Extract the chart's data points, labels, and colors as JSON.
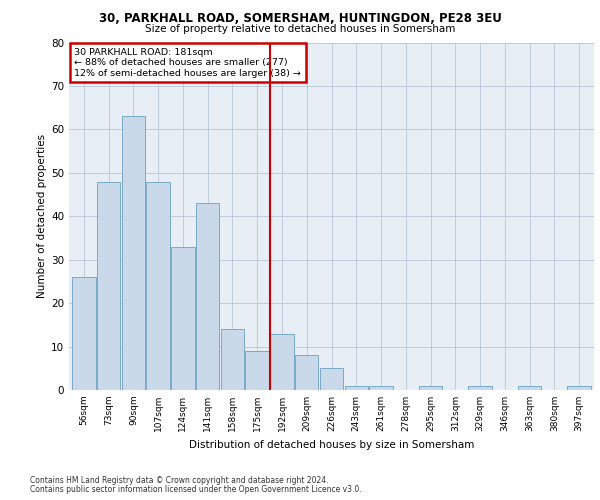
{
  "title1": "30, PARKHALL ROAD, SOMERSHAM, HUNTINGDON, PE28 3EU",
  "title2": "Size of property relative to detached houses in Somersham",
  "xlabel": "Distribution of detached houses by size in Somersham",
  "ylabel": "Number of detached properties",
  "bar_labels": [
    "56sqm",
    "73sqm",
    "90sqm",
    "107sqm",
    "124sqm",
    "141sqm",
    "158sqm",
    "175sqm",
    "192sqm",
    "209sqm",
    "226sqm",
    "243sqm",
    "261sqm",
    "278sqm",
    "295sqm",
    "312sqm",
    "329sqm",
    "346sqm",
    "363sqm",
    "380sqm",
    "397sqm"
  ],
  "bar_values": [
    26,
    48,
    63,
    48,
    33,
    43,
    14,
    9,
    13,
    8,
    5,
    1,
    1,
    0,
    1,
    0,
    1,
    0,
    1,
    0,
    1
  ],
  "bar_color": "#c9d9ea",
  "bar_edge_color": "#7aaac8",
  "vline_color": "#cc0000",
  "annotation_text": "30 PARKHALL ROAD: 181sqm\n← 88% of detached houses are smaller (277)\n12% of semi-detached houses are larger (38) →",
  "annotation_box_color": "#cc0000",
  "ylim": [
    0,
    80
  ],
  "yticks": [
    0,
    10,
    20,
    30,
    40,
    50,
    60,
    70,
    80
  ],
  "plot_bg_color": "#e8eef6",
  "footer1": "Contains HM Land Registry data © Crown copyright and database right 2024.",
  "footer2": "Contains public sector information licensed under the Open Government Licence v3.0."
}
